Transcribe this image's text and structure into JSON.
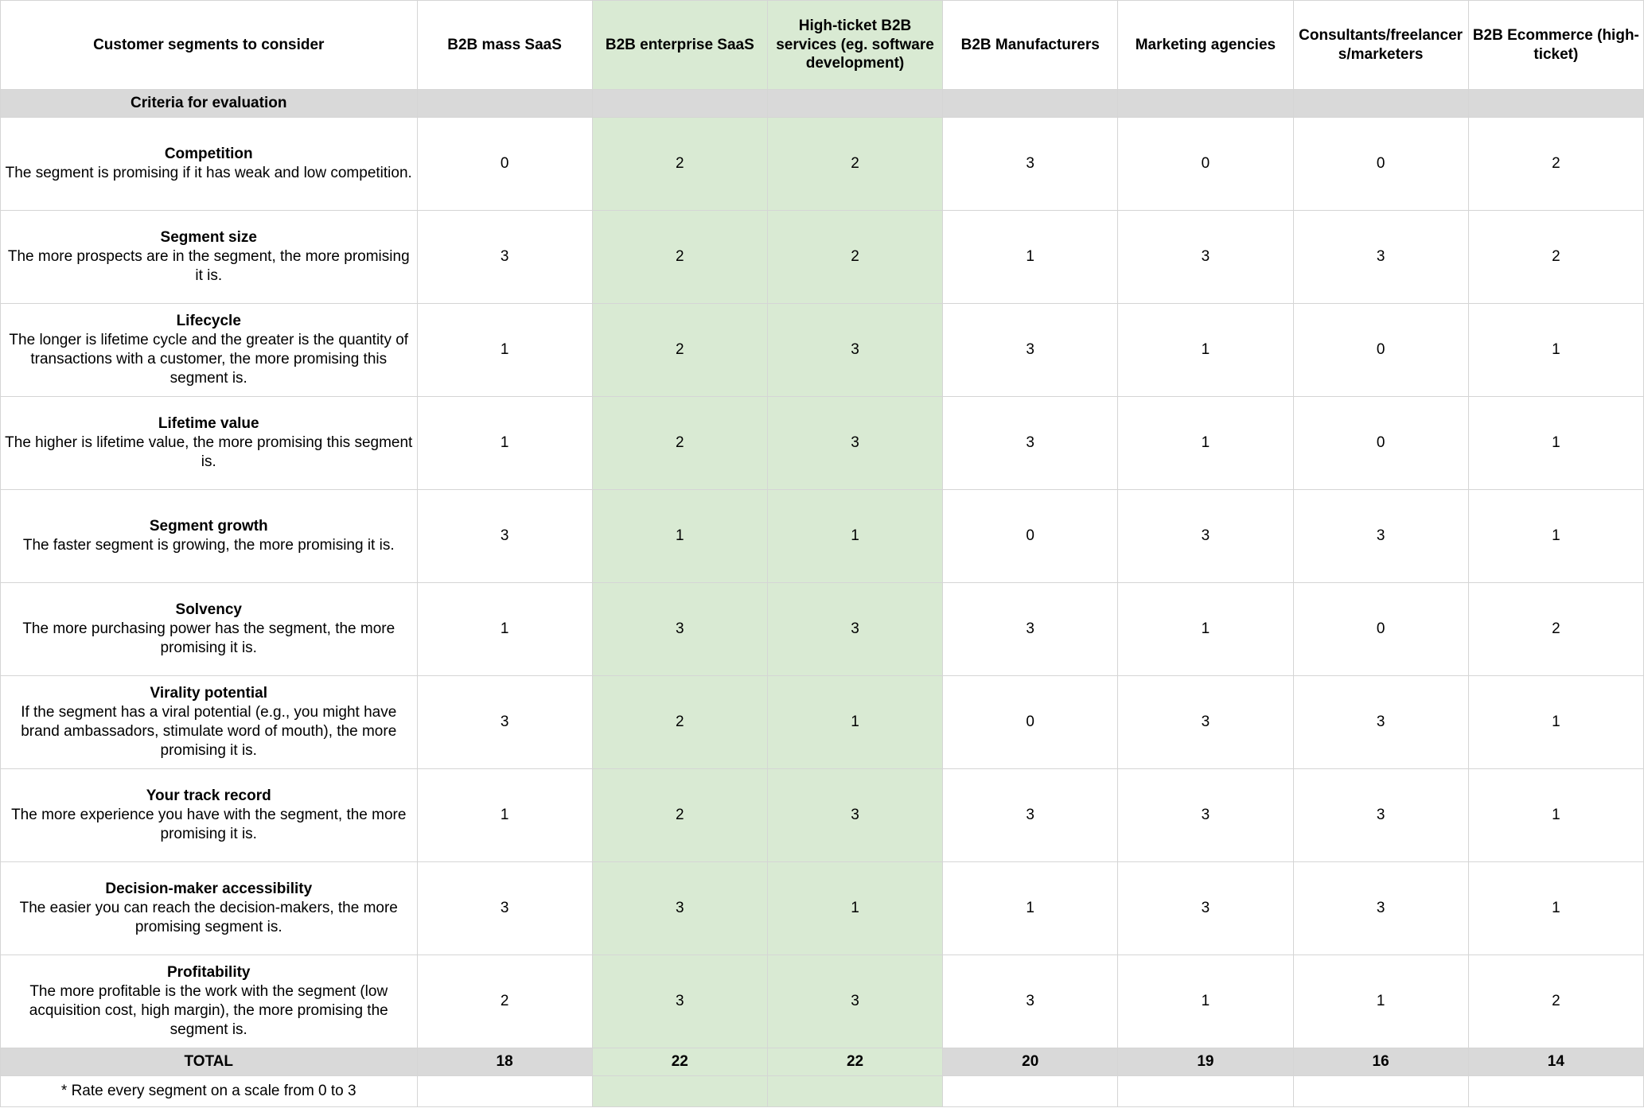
{
  "table": {
    "header": {
      "row_label_column": "Customer segments to consider",
      "segments": [
        {
          "label": "B2B mass SaaS",
          "highlighted": false
        },
        {
          "label": "B2B enterprise SaaS",
          "highlighted": true
        },
        {
          "label": "High-ticket B2B services (eg. software development)",
          "highlighted": true
        },
        {
          "label": "B2B Manufacturers",
          "highlighted": false
        },
        {
          "label": "Marketing agencies",
          "highlighted": false
        },
        {
          "label": "Consultants/freelancers/marketers",
          "highlighted": false
        },
        {
          "label": "B2B Ecommerce (high-ticket)",
          "highlighted": false
        }
      ]
    },
    "criteria_section_label": "Criteria for evaluation",
    "criteria": [
      {
        "name": "Competition",
        "description": "The segment is promising if it has weak and low competition.",
        "scores": [
          0,
          2,
          2,
          3,
          0,
          0,
          2
        ]
      },
      {
        "name": "Segment size",
        "description": "The more prospects are in the segment, the more promising it is.",
        "scores": [
          3,
          2,
          2,
          1,
          3,
          3,
          2
        ]
      },
      {
        "name": "Lifecycle",
        "description": "The longer is lifetime cycle and the greater is the quantity of transactions with a customer, the more promising this segment is.",
        "scores": [
          1,
          2,
          3,
          3,
          1,
          0,
          1
        ]
      },
      {
        "name": "Lifetime value",
        "description": "The higher is lifetime value, the more promising this segment is.",
        "scores": [
          1,
          2,
          3,
          3,
          1,
          0,
          1
        ]
      },
      {
        "name": "Segment growth",
        "description": "The faster segment is growing, the more promising it is.",
        "scores": [
          3,
          1,
          1,
          0,
          3,
          3,
          1
        ]
      },
      {
        "name": "Solvency",
        "description": "The more purchasing power has the segment, the more promising it is.",
        "scores": [
          1,
          3,
          3,
          3,
          1,
          0,
          2
        ]
      },
      {
        "name": "Virality potential",
        "description": "If the segment has a viral potential (e.g., you might have brand ambassadors, stimulate word of mouth), the more promising it is.",
        "scores": [
          3,
          2,
          1,
          0,
          3,
          3,
          1
        ]
      },
      {
        "name": "Your track record",
        "description": "The more experience you have with the segment, the more promising it is.",
        "scores": [
          1,
          2,
          3,
          3,
          3,
          3,
          1
        ]
      },
      {
        "name": "Decision-maker accessibility",
        "description": "The easier you can reach the decision-makers, the more promising segment is.",
        "scores": [
          3,
          3,
          1,
          1,
          3,
          3,
          1
        ]
      },
      {
        "name": "Profitability",
        "description": "The more profitable is the work with the segment (low acquisition cost, high margin), the more promising the segment is.",
        "scores": [
          2,
          3,
          3,
          3,
          1,
          1,
          2
        ]
      }
    ],
    "total": {
      "label": "TOTAL",
      "values": [
        18,
        22,
        22,
        20,
        19,
        16,
        14
      ]
    },
    "footnote": "* Rate every segment on a scale from 0 to 3"
  },
  "colors": {
    "highlight_green": "#d9ead3",
    "band_gray": "#d9d9d9",
    "grid_line": "#d5d5d5"
  }
}
